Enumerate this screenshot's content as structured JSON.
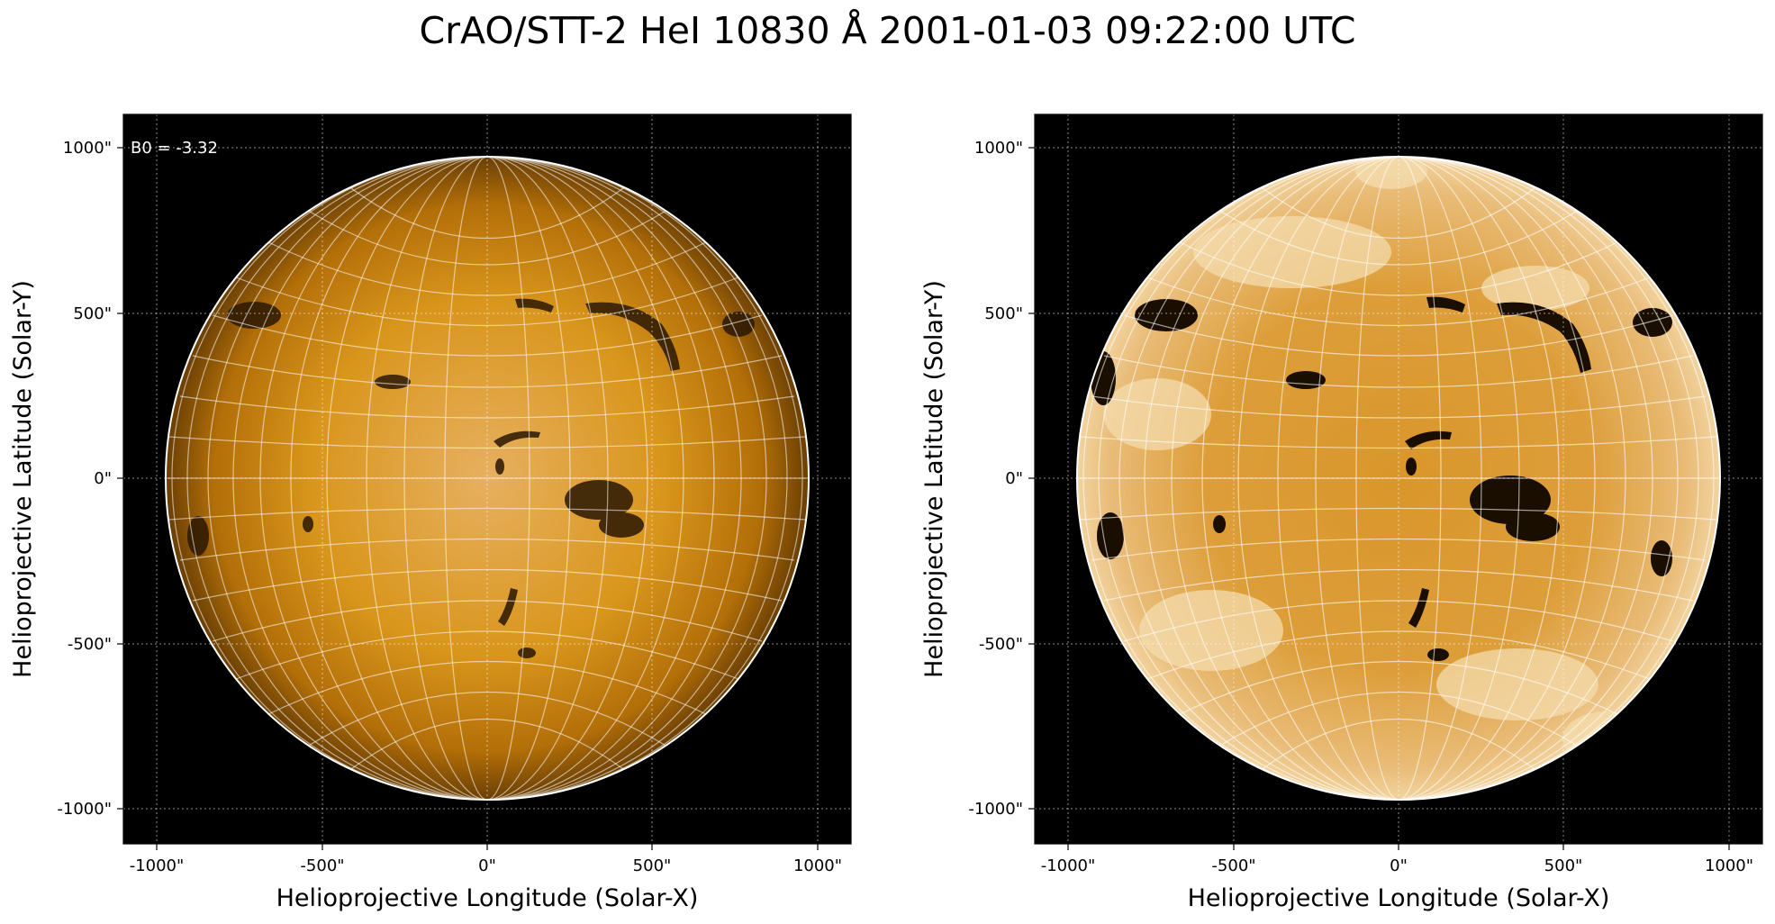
{
  "title": "CrAO/STT-2 HeI 10830 Å 2001-01-03 09:22:00 UTC",
  "colors": {
    "background": "#000000",
    "disk_mid": "#d28a12",
    "disk_center_light": "#e7b060",
    "disk_limb_dark": "#6a3f04",
    "grid": "#ffffff",
    "limb_circle": "#ffffff"
  },
  "panels": [
    {
      "id": "left",
      "style": "limb-darkened",
      "annotation": "B0 = -3.32",
      "xlabel": "Helioprojective Longitude (Solar-X)",
      "ylabel": "Helioprojective Latitude (Solar-Y)",
      "xticks": [
        "-1000\"",
        "-500\"",
        "0\"",
        "500\"",
        "1000\""
      ],
      "yticks": [
        "1000\"",
        "500\"",
        "0\"",
        "-500\"",
        "-1000\""
      ]
    },
    {
      "id": "right",
      "style": "contrast-enhanced",
      "annotation": "",
      "xlabel": "Helioprojective Longitude (Solar-X)",
      "ylabel": "Helioprojective Latitude (Solar-Y)",
      "xticks": [
        "-1000\"",
        "-500\"",
        "0\"",
        "500\"",
        "1000\""
      ],
      "yticks": [
        "1000\"",
        "500\"",
        "0\"",
        "-500\"",
        "-1000\""
      ]
    }
  ]
}
